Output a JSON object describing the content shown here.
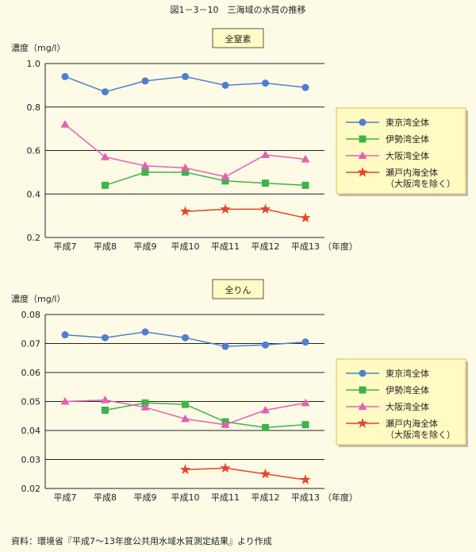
{
  "page_title": "図1－3－10　三海域の水質の推移",
  "source_note": "資料：環境省『平成7～13年度公共用水域水質測定結果』より作成",
  "colors": {
    "background": "#fdfbe6",
    "title_box": "#fffbc2",
    "legend_box": "#fffbc2",
    "legend_border": "#e8b84a",
    "grid": "#222222"
  },
  "chart_data": [
    {
      "type": "line",
      "title": "全窒素",
      "ylabel": "濃度（mg/l）",
      "xlabel_suffix": "（年度）",
      "categories": [
        "平成7",
        "平成8",
        "平成9",
        "平成10",
        "平成11",
        "平成12",
        "平成13"
      ],
      "ylim": [
        0.2,
        1.0
      ],
      "yticks": [
        0.2,
        0.4,
        0.6,
        0.8,
        1.0
      ],
      "ytick_labels": [
        "0.2",
        "0.4",
        "0.6",
        "0.8",
        "1.0"
      ],
      "grid": true,
      "legend_position": "right",
      "series": [
        {
          "name": "東京湾全体",
          "color": "#4f7fd0",
          "marker": "circle",
          "values": [
            0.94,
            0.87,
            0.92,
            0.94,
            0.9,
            0.91,
            0.89
          ]
        },
        {
          "name": "伊勢湾全体",
          "color": "#3cb44a",
          "marker": "square",
          "values": [
            null,
            0.44,
            0.5,
            0.5,
            0.46,
            0.45,
            0.44
          ]
        },
        {
          "name": "大阪湾全体",
          "color": "#e65fb4",
          "marker": "triangle",
          "values": [
            0.72,
            0.57,
            0.53,
            0.52,
            0.48,
            0.58,
            0.56
          ]
        },
        {
          "name": "瀬戸内海全体",
          "name2": "（大阪湾を除く）",
          "color": "#e8432c",
          "marker": "star",
          "values": [
            null,
            null,
            null,
            0.32,
            0.33,
            0.33,
            0.29
          ]
        }
      ]
    },
    {
      "type": "line",
      "title": "全りん",
      "ylabel": "濃度（mg/l）",
      "xlabel_suffix": "（年度）",
      "categories": [
        "平成7",
        "平成8",
        "平成9",
        "平成10",
        "平成11",
        "平成12",
        "平成13"
      ],
      "ylim": [
        0.02,
        0.08
      ],
      "yticks": [
        0.02,
        0.03,
        0.04,
        0.05,
        0.06,
        0.07,
        0.08
      ],
      "ytick_labels": [
        "0.02",
        "0.03",
        "0.04",
        "0.05",
        "0.06",
        "0.07",
        "0.08"
      ],
      "grid": true,
      "legend_position": "right",
      "series": [
        {
          "name": "東京湾全体",
          "color": "#4f7fd0",
          "marker": "circle",
          "values": [
            0.073,
            0.072,
            0.074,
            0.072,
            0.069,
            0.0695,
            0.0705
          ]
        },
        {
          "name": "伊勢湾全体",
          "color": "#3cb44a",
          "marker": "square",
          "values": [
            null,
            0.047,
            0.0495,
            0.049,
            0.043,
            0.041,
            0.042
          ]
        },
        {
          "name": "大阪湾全体",
          "color": "#e65fb4",
          "marker": "triangle",
          "values": [
            0.05,
            0.0505,
            0.048,
            0.044,
            0.042,
            0.047,
            0.0495
          ]
        },
        {
          "name": "瀬戸内海全体",
          "name2": "（大阪湾を除く）",
          "color": "#e8432c",
          "marker": "star",
          "values": [
            null,
            null,
            null,
            0.0265,
            0.027,
            0.025,
            0.023
          ]
        }
      ]
    }
  ]
}
